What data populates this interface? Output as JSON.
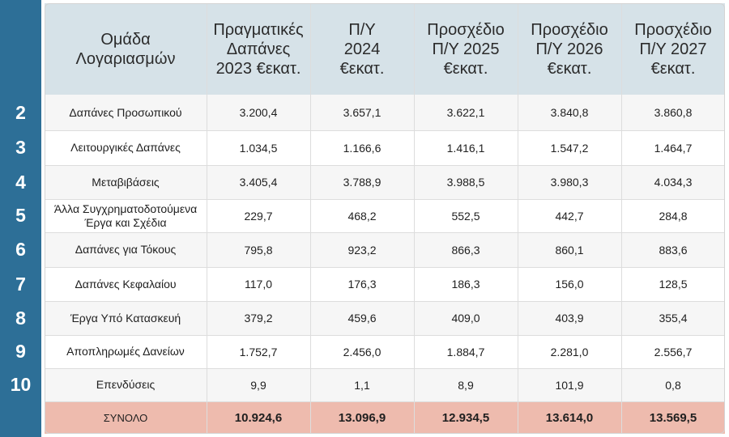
{
  "headers": [
    "Ομάδα\nΛογαριασμών",
    "Πραγματικές\nΔαπάνες\n2023 €εκατ.",
    "Π/Υ\n2024\n€εκατ.",
    "Προσχέδιο\nΠ/Υ 2025\n€εκατ.",
    "Προσχέδιο\nΠ/Υ 2026\n€εκατ.",
    "Προσχέδιο\nΠ/Υ 2027\n€εκατ."
  ],
  "rows": [
    {
      "num": "2",
      "label": "Δαπάνες Προσωπικού",
      "values": [
        "3.200,4",
        "3.657,1",
        "3.622,1",
        "3.840,8",
        "3.860,8"
      ]
    },
    {
      "num": "3",
      "label": "Λειτουργικές Δαπάνες",
      "values": [
        "1.034,5",
        "1.166,6",
        "1.416,1",
        "1.547,2",
        "1.464,7"
      ]
    },
    {
      "num": "4",
      "label": "Μεταβιβάσεις",
      "values": [
        "3.405,4",
        "3.788,9",
        "3.988,5",
        "3.980,3",
        "4.034,3"
      ]
    },
    {
      "num": "5",
      "label": "Άλλα Συγχρηματοδοτούμενα\nΈργα και Σχέδια",
      "values": [
        "229,7",
        "468,2",
        "552,5",
        "442,7",
        "284,8"
      ]
    },
    {
      "num": "6",
      "label": "Δαπάνες για Τόκους",
      "values": [
        "795,8",
        "923,2",
        "866,3",
        "860,1",
        "883,6"
      ]
    },
    {
      "num": "7",
      "label": "Δαπάνες Κεφαλαίου",
      "values": [
        "117,0",
        "176,3",
        "186,3",
        "156,0",
        "128,5"
      ]
    },
    {
      "num": "8",
      "label": "Έργα Υπό Κατασκευή",
      "values": [
        "379,2",
        "459,6",
        "409,0",
        "403,9",
        "355,4"
      ]
    },
    {
      "num": "9",
      "label": "Αποπληρωμές Δανείων",
      "values": [
        "1.752,7",
        "2.456,0",
        "1.884,7",
        "2.281,0",
        "2.556,7"
      ]
    },
    {
      "num": "10",
      "label": "Επενδύσεις",
      "values": [
        "9,9",
        "1,1",
        "8,9",
        "101,9",
        "0,8"
      ]
    }
  ],
  "total": {
    "label": "ΣΥΝΟΛΟ",
    "values": [
      "10.924,6",
      "13.096,9",
      "12.934,5",
      "13.614,0",
      "13.569,5"
    ]
  },
  "colors": {
    "side": "#2d6f97",
    "header": "#d6e2e8",
    "total": "#eebbae",
    "body": "#f6f6f6"
  }
}
